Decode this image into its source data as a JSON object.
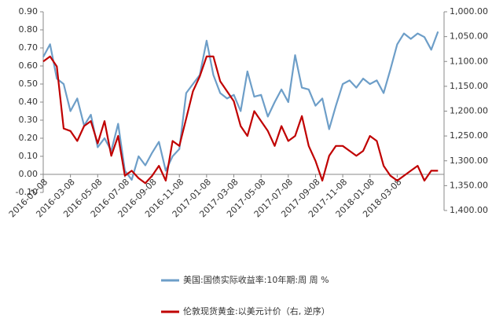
{
  "chart_data": {
    "type": "line",
    "categories": [
      "2016-01-08",
      null,
      null,
      null,
      "2016-03-08",
      null,
      null,
      null,
      "2016-05-08",
      null,
      null,
      null,
      "2016-07-08",
      null,
      null,
      null,
      "2016-09-08",
      null,
      null,
      null,
      "2016-11-08",
      null,
      null,
      null,
      "2017-01-08",
      null,
      null,
      null,
      "2017-03-08",
      null,
      null,
      null,
      "2017-05-08",
      null,
      null,
      null,
      "2017-07-08",
      null,
      null,
      null,
      "2017-09-08",
      null,
      null,
      null,
      "2017-11-08",
      null,
      null,
      null,
      "2018-01-08",
      null,
      null,
      null,
      "2018-03-08",
      null,
      null,
      null,
      null,
      null,
      null
    ],
    "series": [
      {
        "name": "美国:国债实际收益率:10年期:周 周 %",
        "color": "#6d9ec8",
        "values": [
          0.65,
          0.72,
          0.53,
          0.5,
          0.35,
          0.42,
          0.27,
          0.33,
          0.15,
          0.2,
          0.13,
          0.28,
          0.02,
          -0.03,
          0.1,
          0.05,
          0.12,
          0.18,
          0.02,
          0.1,
          0.14,
          0.45,
          0.5,
          0.55,
          0.74,
          0.55,
          0.45,
          0.42,
          0.44,
          0.35,
          0.57,
          0.43,
          0.44,
          0.32,
          0.4,
          0.47,
          0.4,
          0.66,
          0.48,
          0.47,
          0.38,
          0.42,
          0.25,
          0.38,
          0.5,
          0.52,
          0.48,
          0.53,
          0.5,
          0.52,
          0.45,
          0.58,
          0.72,
          0.78,
          0.75,
          0.78,
          0.76,
          0.69,
          0.79
        ]
      },
      {
        "name": "伦敦现货黄金:以美元计价（右, 逆序）",
        "color": "#c00000",
        "axis": "y2",
        "values": [
          1100,
          1090,
          1110,
          1235,
          1240,
          1260,
          1230,
          1220,
          1265,
          1220,
          1290,
          1250,
          1330,
          1320,
          1335,
          1345,
          1330,
          1310,
          1340,
          1260,
          1270,
          1215,
          1160,
          1130,
          1090,
          1090,
          1140,
          1160,
          1180,
          1230,
          1250,
          1200,
          1220,
          1240,
          1270,
          1230,
          1260,
          1250,
          1210,
          1270,
          1300,
          1340,
          1290,
          1270,
          1270,
          1280,
          1290,
          1280,
          1250,
          1260,
          1310,
          1330,
          1340,
          1330,
          1320,
          1310,
          1340,
          1320,
          1320
        ]
      }
    ],
    "ylim": [
      -0.1,
      0.9
    ],
    "yticks": [
      {
        "value": -0.1,
        "label": "-0.10"
      },
      {
        "value": 0,
        "label": "0.00"
      },
      {
        "value": 0.1,
        "label": "0.10"
      },
      {
        "value": 0.2,
        "label": "0.20"
      },
      {
        "value": 0.3,
        "label": "0.30"
      },
      {
        "value": 0.4,
        "label": "0.40"
      },
      {
        "value": 0.5,
        "label": "0.50"
      },
      {
        "value": 0.6,
        "label": "0.60"
      },
      {
        "value": 0.7,
        "label": "0.70"
      },
      {
        "value": 0.8,
        "label": "0.80"
      },
      {
        "value": 0.9,
        "label": "0.90"
      }
    ],
    "y2lim": [
      1000,
      1400
    ],
    "y2_inverted": true,
    "y2ticks": [
      {
        "value": 1000,
        "label": "1,000.00"
      },
      {
        "value": 1050,
        "label": "1,050.00"
      },
      {
        "value": 1100,
        "label": "1,100.00"
      },
      {
        "value": 1150,
        "label": "1,150.00"
      },
      {
        "value": 1200,
        "label": "1,200.00"
      },
      {
        "value": 1250,
        "label": "1,250.00"
      },
      {
        "value": 1300,
        "label": "1,300.00"
      },
      {
        "value": 1350,
        "label": "1,350.00"
      },
      {
        "value": 1400,
        "label": "1,400.00"
      }
    ],
    "grid": false
  }
}
